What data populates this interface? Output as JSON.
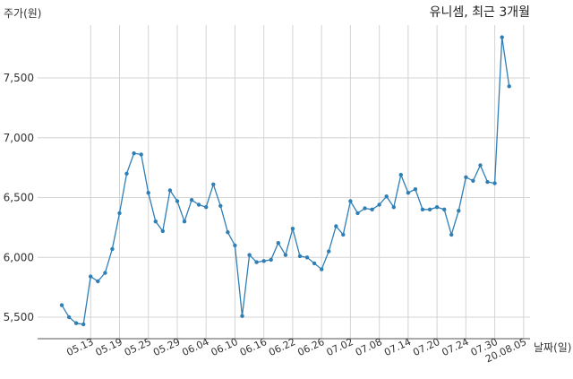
{
  "chart_data": {
    "type": "line",
    "title": "유니셈, 최근 3개월",
    "ylabel": "주가(원)",
    "xlabel": "날짜(일)",
    "ylim": [
      5250,
      8000
    ],
    "yticks": [
      5500,
      6000,
      6500,
      7000,
      7500
    ],
    "ytick_labels": [
      "5,500",
      "6,000",
      "6,500",
      "7,000",
      "7,500"
    ],
    "grid": true,
    "xtick_labels": [
      "05.13",
      "05.19",
      "05.25",
      "05.29",
      "06.04",
      "06.10",
      "06.16",
      "06.22",
      "06.26",
      "07.02",
      "07.08",
      "07.14",
      "07.20",
      "07.24",
      "07.30",
      "20.08.05"
    ],
    "xtick_indices": [
      4,
      8,
      12,
      16,
      20,
      24,
      28,
      32,
      36,
      40,
      44,
      48,
      52,
      56,
      60,
      64
    ],
    "series": [
      {
        "color": "#2f7fb5",
        "values": [
          5600,
          5500,
          5450,
          5440,
          5840,
          5800,
          5870,
          6070,
          6370,
          6700,
          6870,
          6860,
          6540,
          6300,
          6220,
          6560,
          6470,
          6300,
          6480,
          6440,
          6420,
          6610,
          6430,
          6210,
          6100,
          5510,
          6020,
          5960,
          5970,
          5980,
          6120,
          6020,
          6240,
          6010,
          6000,
          5950,
          5900,
          6050,
          6260,
          6190,
          6470,
          6370,
          6410,
          6400,
          6440,
          6510,
          6420,
          6690,
          6540,
          6570,
          6400,
          6400,
          6420,
          6400,
          6190,
          6390,
          6670,
          6640,
          6770,
          6630,
          6620,
          7840,
          7430
        ]
      }
    ]
  }
}
